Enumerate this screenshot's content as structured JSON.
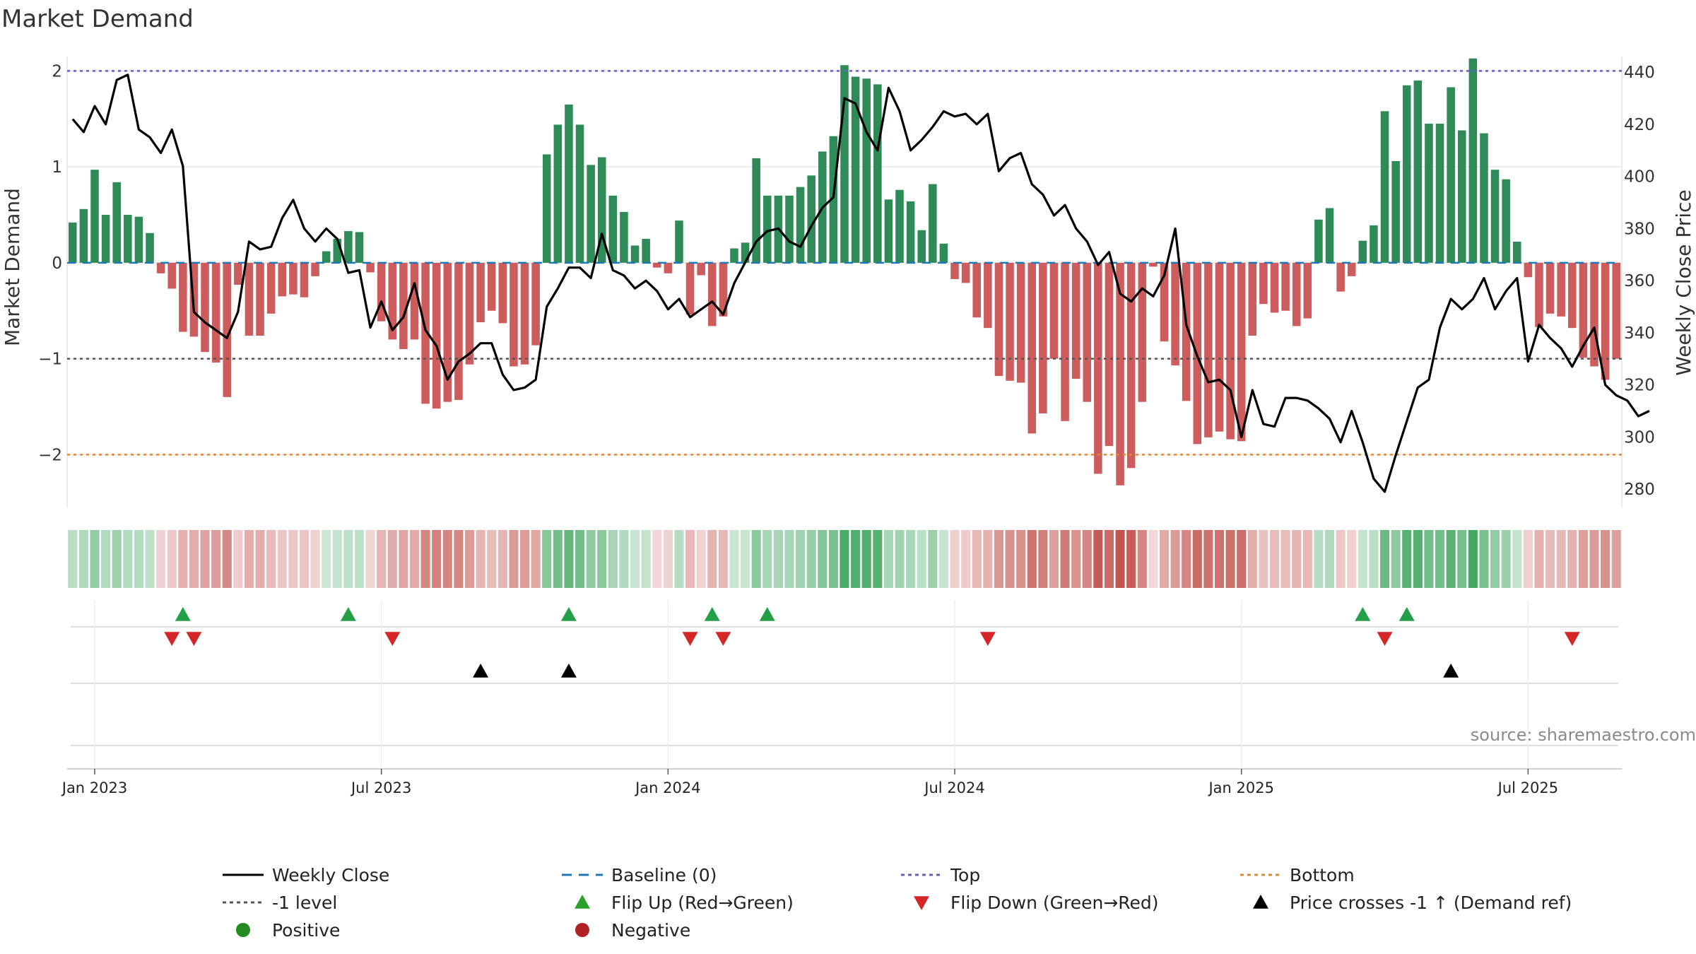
{
  "chart_data": {
    "type": "bar+line",
    "title": "Market Demand",
    "ylabel_left": "Market Demand",
    "ylabel_right": "Weekly Close Price",
    "ylim_left": [
      -2.55,
      2.15
    ],
    "ylim_right": [
      273,
      446
    ],
    "yticks_left": [
      -2,
      -1,
      0,
      1,
      2
    ],
    "yticks_left_labels": [
      "−2",
      "−1",
      "0",
      "1",
      "2"
    ],
    "yticks_right": [
      280,
      300,
      320,
      340,
      360,
      380,
      400,
      420,
      440
    ],
    "yticks_right_labels": [
      "280",
      "300",
      "320",
      "340",
      "360",
      "380",
      "400",
      "420",
      "440"
    ],
    "reference_lines": {
      "top": 2.0,
      "level_minus_1": -1.0,
      "bottom": -2.0,
      "baseline": 0
    },
    "x_start_week_offset": -2,
    "x_tick_weeks": [
      0,
      26,
      52,
      78,
      104,
      130
    ],
    "x_tick_labels": [
      "Jan 2023",
      "Jul 2023",
      "Jan 2024",
      "Jul 2024",
      "Jan 2025",
      "Jul 2025"
    ],
    "demand": [
      0.42,
      0.56,
      0.97,
      0.5,
      0.84,
      0.5,
      0.48,
      0.31,
      -0.11,
      -0.27,
      -0.72,
      -0.77,
      -0.93,
      -1.04,
      -1.4,
      -0.23,
      -0.76,
      -0.76,
      -0.53,
      -0.35,
      -0.33,
      -0.36,
      -0.14,
      0.12,
      0.25,
      0.33,
      0.32,
      -0.1,
      -0.61,
      -0.8,
      -0.9,
      -0.8,
      -1.47,
      -1.52,
      -1.45,
      -1.43,
      -1.06,
      -0.62,
      -0.5,
      -0.63,
      -1.08,
      -1.06,
      -0.86,
      1.13,
      1.44,
      1.65,
      1.44,
      1.02,
      1.1,
      0.7,
      0.53,
      0.18,
      0.25,
      -0.05,
      -0.11,
      0.44,
      -0.54,
      -0.13,
      -0.66,
      -0.56,
      0.15,
      0.21,
      1.09,
      0.7,
      0.7,
      0.7,
      0.79,
      0.91,
      1.16,
      1.32,
      2.06,
      1.94,
      1.92,
      1.86,
      0.66,
      0.76,
      0.64,
      0.34,
      0.82,
      0.2,
      -0.17,
      -0.21,
      -0.57,
      -0.68,
      -1.18,
      -1.23,
      -1.25,
      -1.78,
      -1.57,
      -1.0,
      -1.65,
      -1.21,
      -1.45,
      -2.2,
      -1.91,
      -2.32,
      -2.14,
      -1.45,
      -0.04,
      -0.82,
      -1.07,
      -1.44,
      -1.89,
      -1.82,
      -1.76,
      -1.84,
      -1.86,
      -0.76,
      -0.43,
      -0.52,
      -0.5,
      -0.66,
      -0.58,
      0.45,
      0.57,
      -0.3,
      -0.14,
      0.23,
      0.39,
      1.58,
      1.06,
      1.85,
      1.9,
      1.45,
      1.45,
      1.83,
      1.38,
      2.13,
      1.35,
      0.97,
      0.87,
      0.22,
      -0.15,
      -0.67,
      -0.53,
      -0.56,
      -0.68,
      -0.99,
      -1.08,
      -1.22,
      -1.0
    ],
    "weekly_close": [
      422,
      417,
      427,
      420,
      437,
      439,
      418,
      415,
      409,
      418,
      404,
      348,
      344,
      341,
      338,
      348,
      375,
      372,
      373,
      384,
      391,
      380,
      375,
      380,
      376,
      363,
      364,
      342,
      352,
      341,
      346,
      359,
      341,
      335,
      322,
      329,
      332,
      336,
      336,
      324,
      318,
      319,
      322,
      350,
      357,
      365,
      365,
      361,
      378,
      364,
      362,
      357,
      360,
      356,
      349,
      353,
      346,
      349,
      352,
      347,
      359,
      367,
      375,
      379,
      380,
      375,
      373,
      381,
      388,
      392,
      430,
      428,
      417,
      410,
      434,
      425,
      410,
      414,
      419,
      425,
      423,
      424,
      420,
      424,
      402,
      407,
      409,
      397,
      393,
      385,
      389,
      380,
      375,
      366,
      371,
      355,
      352,
      357,
      354,
      362,
      380,
      343,
      331,
      321,
      322,
      318,
      300,
      318,
      305,
      304,
      315,
      315,
      314,
      311,
      307,
      298,
      310,
      298,
      284,
      279,
      293,
      306,
      319,
      322,
      342,
      353,
      349,
      353,
      361,
      349,
      356,
      361,
      329,
      343,
      338,
      334,
      327,
      335,
      342,
      320,
      316,
      314,
      308,
      310
    ],
    "flip_up_weeks": [
      8,
      23,
      43,
      56,
      61,
      115,
      119
    ],
    "flip_down_weeks": [
      7,
      9,
      27,
      54,
      57,
      81,
      117,
      134
    ],
    "price_cross_weeks": [
      35,
      43,
      123
    ],
    "source": "source: sharemaestro.com",
    "legend": [
      {
        "label": "Weekly Close",
        "kind": "line-solid",
        "color": "#000000"
      },
      {
        "label": "Baseline (0)",
        "kind": "line-dash",
        "color": "#1f77b4"
      },
      {
        "label": "Top",
        "kind": "line-dot",
        "color": "#6a5acd"
      },
      {
        "label": "Bottom",
        "kind": "line-dot",
        "color": "#e8862a"
      },
      {
        "label": "-1 level",
        "kind": "line-dot",
        "color": "#555555"
      },
      {
        "label": "Flip Up (Red→Green)",
        "kind": "tri-up",
        "color": "#2ca02c"
      },
      {
        "label": "Flip Down (Green→Red)",
        "kind": "tri-down",
        "color": "#d62728"
      },
      {
        "label": "Price crosses -1 ↑ (Demand ref)",
        "kind": "tri-up",
        "color": "#000000"
      },
      {
        "label": "Positive",
        "kind": "dot",
        "color": "#228b22"
      },
      {
        "label": "Negative",
        "kind": "dot",
        "color": "#b22222"
      }
    ]
  },
  "colors": {
    "positive_bar": "#2e8b57",
    "negative_bar": "#cd5c5c",
    "price_line": "#000000",
    "baseline": "#1f77b4",
    "top": "#6a5acd",
    "bottom": "#e8862a",
    "level_minus_1": "#555555",
    "grid": "#e6e6e6"
  }
}
